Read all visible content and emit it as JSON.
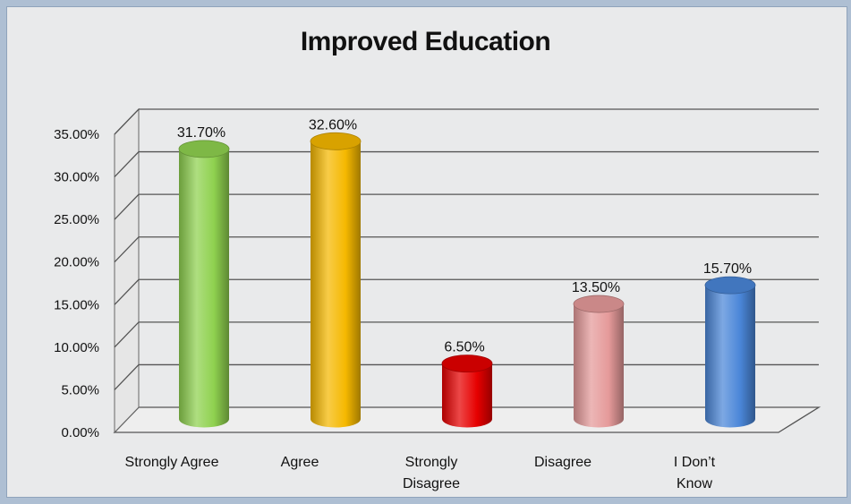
{
  "chart_data": {
    "type": "bar",
    "style": "3d-cylinder",
    "title": "Improved Education",
    "xlabel": "",
    "ylabel": "",
    "categories": [
      "Strongly Agree",
      "Agree",
      "Strongly Disagree",
      "Disagree",
      "I Don’t Know"
    ],
    "category_lines": [
      [
        "Strongly Agree"
      ],
      [
        "Agree"
      ],
      [
        "Strongly",
        "Disagree"
      ],
      [
        "Disagree"
      ],
      [
        "I Don’t",
        "Know"
      ]
    ],
    "values": [
      31.7,
      32.6,
      6.5,
      13.5,
      15.7
    ],
    "data_labels": [
      "31.70%",
      "32.60%",
      "6.50%",
      "13.50%",
      "15.70%"
    ],
    "colors": [
      "#8fd14f",
      "#f5b800",
      "#e60000",
      "#e59a9a",
      "#4a86d8"
    ],
    "ylim": [
      0,
      35
    ],
    "yticks": [
      "0.00%",
      "5.00%",
      "10.00%",
      "15.00%",
      "20.00%",
      "25.00%",
      "30.00%",
      "35.00%"
    ],
    "grid": true,
    "legend": "none"
  }
}
